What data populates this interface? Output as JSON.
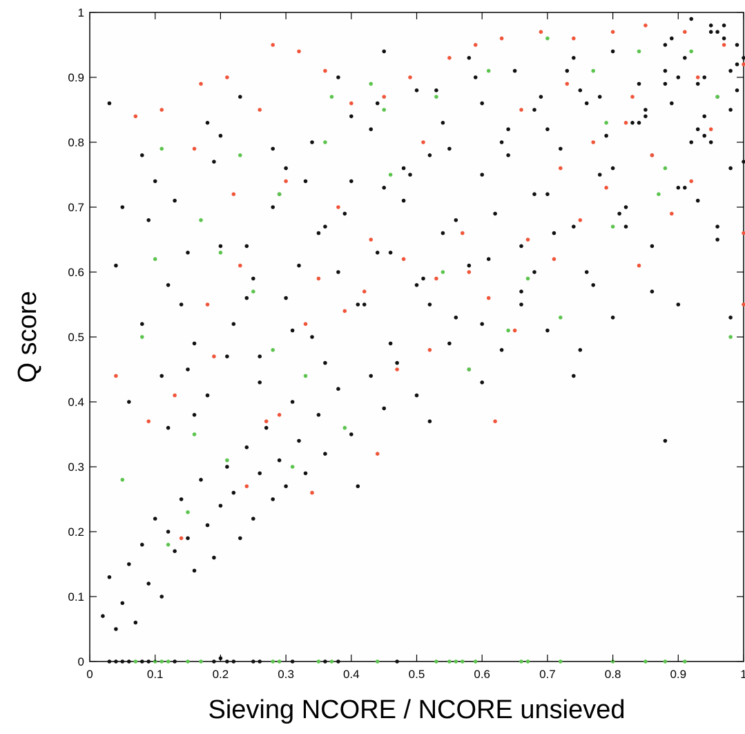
{
  "chart_data": {
    "type": "scatter",
    "title": "",
    "xlabel": "Sieving NCORE / NCORE unsieved",
    "ylabel": "Q score",
    "xlim": [
      0,
      1
    ],
    "ylim": [
      0,
      1
    ],
    "x_ticks": [
      "0",
      "0.1",
      "0.2",
      "0.3",
      "0.4",
      "0.5",
      "0.6",
      "0.7",
      "0.8",
      "0.9",
      "1"
    ],
    "y_ticks": [
      "0",
      "0.1",
      "0.2",
      "0.3",
      "0.4",
      "0.5",
      "0.6",
      "0.7",
      "0.8",
      "0.9",
      "1"
    ],
    "grid": false,
    "legend": "none",
    "colors": {
      "black_points": "#111111",
      "red_points": "#f0553a",
      "green_points": "#5cc44e"
    },
    "series": [
      {
        "color": "black",
        "x": [
          0.02,
          0.03,
          0.04,
          0.05,
          0.06,
          0.07,
          0.08,
          0.09,
          0.1,
          0.11,
          0.12,
          0.13,
          0.14,
          0.15,
          0.16,
          0.17,
          0.18,
          0.19,
          0.2,
          0.21,
          0.22,
          0.23,
          0.24,
          0.25,
          0.26,
          0.27,
          0.28,
          0.29,
          0.3,
          0.31,
          0.32,
          0.33,
          0.35,
          0.36,
          0.38,
          0.4,
          0.41,
          0.43,
          0.45,
          0.47,
          0.5,
          0.52,
          0.55,
          0.58,
          0.6,
          0.63,
          0.66,
          0.7,
          0.74,
          0.77,
          0.8,
          0.88,
          0.12,
          0.15,
          0.18,
          0.22,
          0.26,
          0.3,
          0.34,
          0.38,
          0.42,
          0.46,
          0.5,
          0.54,
          0.58,
          0.62,
          0.66,
          0.7,
          0.74,
          0.78,
          0.82,
          0.86,
          0.9,
          0.94,
          0.98,
          0.08,
          0.12,
          0.16,
          0.2,
          0.24,
          0.28,
          0.32,
          0.36,
          0.4,
          0.44,
          0.48,
          0.52,
          0.56,
          0.6,
          0.64,
          0.68,
          0.72,
          0.76,
          0.8,
          0.84,
          0.88,
          0.92,
          0.96,
          1.0,
          0.05,
          0.1,
          0.15,
          0.2,
          0.25,
          0.3,
          0.35,
          0.4,
          0.45,
          0.5,
          0.55,
          0.6,
          0.65,
          0.7,
          0.75,
          0.8,
          0.85,
          0.9,
          0.95,
          0.99,
          0.04,
          0.09,
          0.14,
          0.19,
          0.24,
          0.29,
          0.34,
          0.39,
          0.44,
          0.49,
          0.54,
          0.59,
          0.64,
          0.69,
          0.74,
          0.79,
          0.84,
          0.89,
          0.94,
          0.98,
          0.03,
          0.08,
          0.13,
          0.18,
          0.23,
          0.28,
          0.33,
          0.38,
          0.43,
          0.48,
          0.53,
          0.58,
          0.63,
          0.68,
          0.73,
          0.78,
          0.83,
          0.88,
          0.93,
          0.97,
          0.06,
          0.11,
          0.16,
          0.21,
          0.26,
          0.31,
          0.36,
          0.41,
          0.46,
          0.51,
          0.56,
          0.61,
          0.66,
          0.71,
          0.76,
          0.81,
          0.86,
          0.91,
          0.96,
          1.0,
          0.45,
          0.52,
          0.6,
          0.68,
          0.75,
          0.82,
          0.86,
          0.9,
          0.93,
          0.96,
          0.98,
          0.92,
          0.95,
          0.97,
          0.99,
          0.88,
          0.91,
          0.94,
          0.96,
          0.99,
          0.85,
          0.89,
          0.93,
          0.95,
          0.98
        ],
        "y": [
          0.07,
          0.13,
          0.05,
          0.09,
          0.15,
          0.06,
          0.18,
          0.12,
          0.22,
          0.1,
          0.2,
          0.17,
          0.25,
          0.19,
          0.14,
          0.28,
          0.21,
          0.16,
          0.24,
          0.3,
          0.26,
          0.19,
          0.33,
          0.22,
          0.29,
          0.36,
          0.25,
          0.31,
          0.27,
          0.4,
          0.34,
          0.29,
          0.38,
          0.32,
          0.42,
          0.35,
          0.27,
          0.44,
          0.39,
          0.46,
          0.41,
          0.37,
          0.49,
          0.45,
          0.52,
          0.48,
          0.55,
          0.51,
          0.44,
          0.58,
          0.53,
          0.34,
          0.36,
          0.45,
          0.41,
          0.52,
          0.47,
          0.56,
          0.5,
          0.6,
          0.55,
          0.63,
          0.58,
          0.66,
          0.61,
          0.69,
          0.64,
          0.72,
          0.67,
          0.75,
          0.7,
          0.78,
          0.73,
          0.81,
          0.76,
          0.52,
          0.58,
          0.49,
          0.64,
          0.56,
          0.7,
          0.61,
          0.67,
          0.74,
          0.63,
          0.71,
          0.78,
          0.68,
          0.75,
          0.82,
          0.72,
          0.79,
          0.86,
          0.76,
          0.83,
          0.89,
          0.8,
          0.87,
          0.93,
          0.7,
          0.74,
          0.63,
          0.81,
          0.59,
          0.76,
          0.66,
          0.84,
          0.73,
          0.88,
          0.79,
          0.86,
          0.91,
          0.82,
          0.88,
          0.94,
          0.85,
          0.9,
          0.97,
          0.92,
          0.61,
          0.68,
          0.55,
          0.77,
          0.64,
          0.72,
          0.8,
          0.69,
          0.86,
          0.75,
          0.83,
          0.9,
          0.78,
          0.87,
          0.93,
          0.81,
          0.89,
          0.96,
          0.84,
          0.91,
          0.86,
          0.78,
          0.71,
          0.83,
          0.87,
          0.79,
          0.74,
          0.9,
          0.82,
          0.76,
          0.88,
          0.93,
          0.8,
          0.85,
          0.91,
          0.87,
          0.83,
          0.95,
          0.89,
          0.98,
          0.4,
          0.44,
          0.38,
          0.47,
          0.43,
          0.51,
          0.46,
          0.55,
          0.49,
          0.59,
          0.53,
          0.62,
          0.57,
          0.66,
          0.6,
          0.69,
          0.64,
          0.73,
          0.67,
          0.77,
          0.94,
          0.55,
          0.43,
          0.6,
          0.48,
          0.67,
          0.57,
          0.55,
          0.71,
          0.65,
          0.53,
          0.99,
          0.98,
          0.96,
          0.95,
          0.91,
          0.93,
          0.9,
          0.97,
          0.88,
          0.84,
          0.86,
          0.82,
          0.8,
          0.85
        ]
      },
      {
        "color": "red",
        "x": [
          0.07,
          0.11,
          0.17,
          0.21,
          0.26,
          0.28,
          0.32,
          0.36,
          0.4,
          0.45,
          0.49,
          0.55,
          0.59,
          0.63,
          0.69,
          0.74,
          0.8,
          0.85,
          0.91,
          0.97,
          1.0,
          0.04,
          0.09,
          0.14,
          0.19,
          0.24,
          0.29,
          0.34,
          0.39,
          0.44,
          0.48,
          0.53,
          0.58,
          0.62,
          0.67,
          0.72,
          0.77,
          0.82,
          0.86,
          0.92,
          1.0,
          0.13,
          0.18,
          0.23,
          0.27,
          0.33,
          0.38,
          0.42,
          0.47,
          0.51,
          0.57,
          0.61,
          0.66,
          0.71,
          0.75,
          0.79,
          0.84,
          0.89,
          0.95,
          1.0,
          0.16,
          0.22,
          0.3,
          0.35,
          0.43,
          0.52,
          0.65,
          0.73,
          0.83,
          0.93
        ],
        "y": [
          0.84,
          0.85,
          0.89,
          0.9,
          0.85,
          0.95,
          0.94,
          0.91,
          0.86,
          0.87,
          0.9,
          0.93,
          0.95,
          0.96,
          0.97,
          0.96,
          0.97,
          0.98,
          0.97,
          0.95,
          0.92,
          0.44,
          0.37,
          0.19,
          0.47,
          0.27,
          0.38,
          0.26,
          0.54,
          0.32,
          0.62,
          0.59,
          0.6,
          0.37,
          0.65,
          0.76,
          0.8,
          0.83,
          0.78,
          0.74,
          0.66,
          0.41,
          0.55,
          0.61,
          0.37,
          0.52,
          0.7,
          0.57,
          0.45,
          0.8,
          0.66,
          0.56,
          0.85,
          0.62,
          0.68,
          0.73,
          0.61,
          0.69,
          0.82,
          0.55,
          0.79,
          0.72,
          0.74,
          0.59,
          0.65,
          0.48,
          0.51,
          0.89,
          0.87,
          0.9
        ]
      },
      {
        "color": "green",
        "x": [
          0.11,
          0.17,
          0.23,
          0.29,
          0.36,
          0.43,
          0.53,
          0.61,
          0.7,
          0.77,
          0.84,
          0.92,
          0.1,
          0.15,
          0.21,
          0.28,
          0.33,
          0.39,
          0.46,
          0.54,
          0.64,
          0.72,
          0.8,
          0.88,
          0.96,
          0.05,
          0.08,
          0.12,
          0.16,
          0.2,
          0.25,
          0.31,
          0.37,
          0.45,
          0.58,
          0.67,
          0.79,
          0.87,
          0.98
        ],
        "y": [
          0.79,
          0.68,
          0.78,
          0.72,
          0.8,
          0.89,
          0.87,
          0.91,
          0.96,
          0.91,
          0.94,
          0.94,
          0.62,
          0.23,
          0.31,
          0.48,
          0.44,
          0.36,
          0.75,
          0.6,
          0.51,
          0.53,
          0.67,
          0.76,
          0.87,
          0.28,
          0.5,
          0.18,
          0.35,
          0.63,
          0.57,
          0.3,
          0.87,
          0.85,
          0.45,
          0.59,
          0.83,
          0.72,
          0.5
        ]
      },
      {
        "color": "green",
        "x": [
          0.07,
          0.1,
          0.11,
          0.12,
          0.15,
          0.17,
          0.28,
          0.29,
          0.35,
          0.37,
          0.44,
          0.53,
          0.55,
          0.56,
          0.57,
          0.59,
          0.66,
          0.67,
          0.72,
          0.8,
          0.85,
          0.88,
          0.91
        ],
        "y": [
          0,
          0,
          0,
          0,
          0,
          0,
          0,
          0,
          0,
          0,
          0,
          0,
          0,
          0,
          0,
          0,
          0,
          0,
          0,
          0,
          0,
          0,
          0
        ]
      },
      {
        "color": "black",
        "x": [
          0.03,
          0.04,
          0.05,
          0.06,
          0.08,
          0.09,
          0.13,
          0.19,
          0.2,
          0.21,
          0.22,
          0.25,
          0.26,
          0.31,
          0.36,
          0.38,
          0.47
        ],
        "y": [
          0,
          0,
          0,
          0,
          0,
          0,
          0,
          0,
          0.005,
          0,
          0,
          0,
          0,
          0,
          0,
          0,
          0
        ]
      }
    ]
  }
}
